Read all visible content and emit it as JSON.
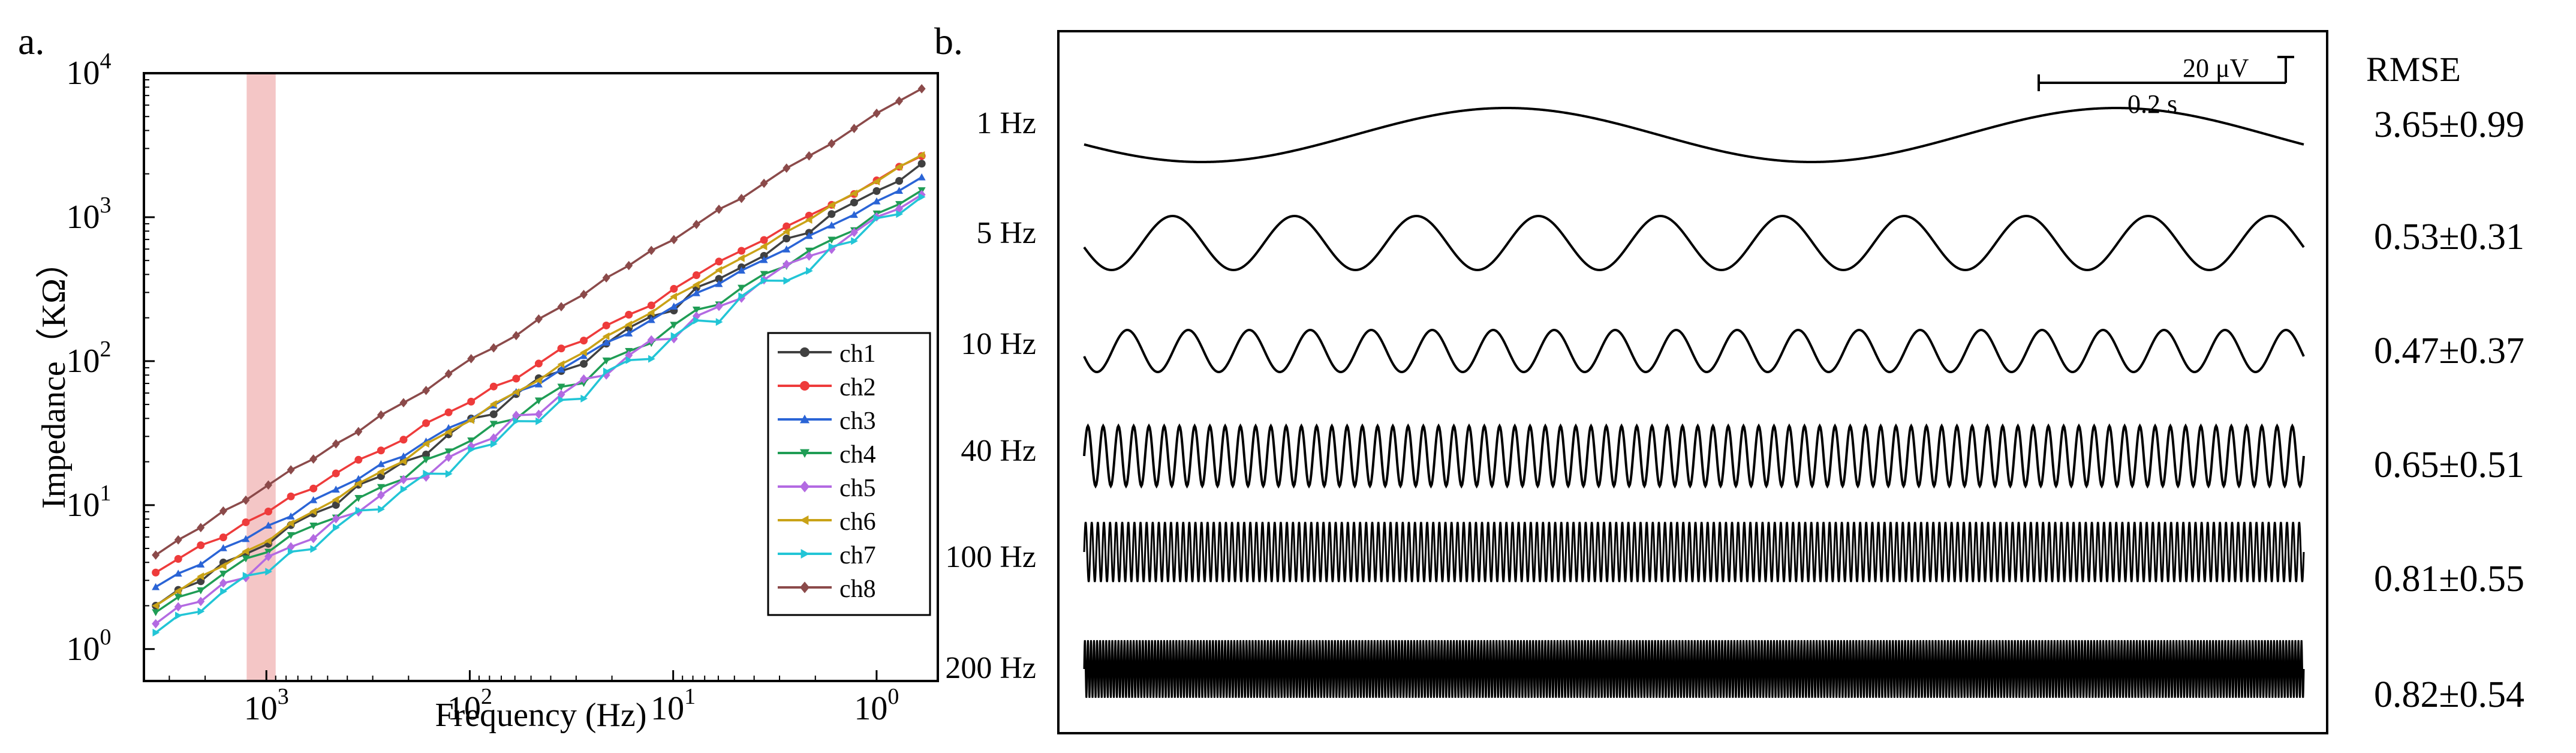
{
  "panel_a": {
    "label": "a.",
    "chart_data": {
      "type": "line",
      "xlabel": "Frequency  (Hz)",
      "ylabel": "Impedance（KΩ）",
      "x_scale": "log",
      "y_scale": "log",
      "x_direction": "descending",
      "xlim": [
        4000,
        0.5
      ],
      "ylim": [
        0.6,
        10000
      ],
      "x_ticks": [
        {
          "value": 1000,
          "base": "10",
          "exp": "3"
        },
        {
          "value": 100,
          "base": "10",
          "exp": "2"
        },
        {
          "value": 10,
          "base": "10",
          "exp": "1"
        },
        {
          "value": 1,
          "base": "10",
          "exp": "0"
        }
      ],
      "y_ticks": [
        {
          "value": 1,
          "base": "10",
          "exp": "0"
        },
        {
          "value": 10,
          "base": "10",
          "exp": "1"
        },
        {
          "value": 100,
          "base": "10",
          "exp": "2"
        },
        {
          "value": 1000,
          "base": "10",
          "exp": "3"
        },
        {
          "value": 10000,
          "base": "10",
          "exp": "4"
        }
      ],
      "highlight_band": {
        "x_from": 1250,
        "x_to": 900,
        "color": "#f4c6c6"
      },
      "legend_position": "bottom-right",
      "series": [
        {
          "name": "ch1",
          "color": "#404040",
          "marker": "circle",
          "y_at_lo": 2.0,
          "y_at_hi": 2300,
          "noise": [
            0,
            0.02,
            -0.01,
            0.03,
            0,
            -0.02,
            0.02,
            0.01,
            -0.02,
            0.03,
            0,
            0.01,
            -0.03,
            0.02,
            0.04,
            -0.02,
            0.03,
            0.05,
            0.01,
            -0.03,
            0.02,
            0.04,
            0.03,
            -0.02,
            0.05,
            0.02,
            0.01,
            0,
            0.03,
            -0.02,
            0.02,
            0.01,
            0,
            -0.02,
            0.01
          ]
        },
        {
          "name": "ch2",
          "color": "#ee3b3b",
          "marker": "circle",
          "y_at_lo": 3.4,
          "y_at_hi": 2600,
          "noise": [
            0,
            0.01,
            0.02,
            -0.01,
            0.01,
            0,
            0.02,
            -0.01,
            0.01,
            0.02,
            0,
            -0.01,
            0.02,
            0.01,
            0,
            0.02,
            -0.01,
            0.01,
            0.03,
            0,
            0.02,
            0.01,
            -0.01,
            0.02,
            0.03,
            0.04,
            0.03,
            0.02,
            0.03,
            0.02,
            0.01,
            0,
            0.01,
            0.02,
            0.01
          ]
        },
        {
          "name": "ch3",
          "color": "#2a64d6",
          "marker": "triangle-up",
          "y_at_lo": 2.7,
          "y_at_hi": 1850,
          "noise": [
            0,
            0.01,
            -0.01,
            0.02,
            0,
            0.01,
            -0.01,
            0.02,
            0.01,
            0,
            0.02,
            -0.01,
            0.01,
            0.02,
            0,
            0.01,
            0.02,
            -0.01,
            0.01,
            0.02,
            0.03,
            0.01,
            0.02,
            0.03,
            0.04,
            0.02,
            0.03,
            0.02,
            0.01,
            0.02,
            0.01,
            0,
            0.01,
            0,
            0.01
          ]
        },
        {
          "name": "ch4",
          "color": "#1f9d55",
          "marker": "triangle-down",
          "y_at_lo": 1.8,
          "y_at_hi": 1500,
          "noise": [
            0,
            0.02,
            -0.02,
            0.01,
            0.03,
            -0.01,
            0.02,
            0,
            -0.03,
            0.02,
            0.01,
            -0.02,
            0.03,
            0,
            -0.01,
            0.02,
            -0.03,
            0.01,
            0.02,
            -0.04,
            0.03,
            0.01,
            -0.02,
            0.02,
            0.04,
            -0.01,
            0.02,
            0.03,
            0,
            0.02,
            0.01,
            -0.01,
            0.02,
            0,
            0.01
          ]
        },
        {
          "name": "ch5",
          "color": "#b36ae2",
          "marker": "diamond",
          "y_at_lo": 1.5,
          "y_at_hi": 1400,
          "noise": [
            0,
            0.03,
            -0.02,
            0.02,
            -0.03,
            0.03,
            0.01,
            -0.02,
            0.03,
            -0.01,
            0.02,
            0.04,
            -0.03,
            0.02,
            0.01,
            -0.02,
            0.05,
            -0.03,
            0.02,
            0.04,
            -0.02,
            0.03,
            0.05,
            -0.03,
            0.04,
            0.02,
            -0.01,
            0.03,
            0.05,
            0.02,
            -0.02,
            0.01,
            0.03,
            0,
            0.01
          ]
        },
        {
          "name": "ch6",
          "color": "#c9a216",
          "marker": "triangle-left",
          "y_at_lo": 2.0,
          "y_at_hi": 2700,
          "noise": [
            0,
            0.01,
            0.02,
            0,
            0.01,
            -0.01,
            0.02,
            0.01,
            0,
            0.02,
            0.01,
            -0.01,
            0.02,
            0.01,
            0,
            0.02,
            0.01,
            0,
            0.02,
            0.01,
            0.03,
            0.02,
            0.01,
            0.03,
            0.02,
            0.03,
            0.02,
            0.01,
            0.02,
            0.01,
            0.02,
            0.01,
            0,
            0.01,
            0
          ]
        },
        {
          "name": "ch7",
          "color": "#22c5d6",
          "marker": "triangle-right",
          "y_at_lo": 1.3,
          "y_at_hi": 1350,
          "noise": [
            0,
            0.03,
            -0.03,
            0.02,
            0.04,
            -0.02,
            0.03,
            -0.04,
            0.02,
            0.05,
            -0.03,
            0.02,
            0.04,
            -0.05,
            0.03,
            -0.02,
            0.05,
            -0.04,
            0.02,
            -0.06,
            0.04,
            0.03,
            -0.05,
            0.02,
            0.04,
            -0.06,
            0.03,
            0.05,
            -0.04,
            -0.06,
            0.02,
            -0.03,
            0.04,
            -0.02,
            0.01
          ]
        },
        {
          "name": "ch8",
          "color": "#8b4a4a",
          "marker": "diamond",
          "y_at_lo": 4.5,
          "y_at_hi": 7800,
          "noise": [
            0,
            0.01,
            0,
            0.02,
            0,
            0.01,
            0.02,
            0,
            0.01,
            0,
            0.02,
            0.01,
            0,
            0.02,
            0.03,
            0.01,
            0,
            0.02,
            0.01,
            0,
            0.02,
            0.01,
            0.02,
            0,
            0.01,
            0.02,
            0,
            0.01,
            0.02,
            0.01,
            0,
            0.01,
            0.02,
            0.01,
            0
          ]
        }
      ]
    }
  },
  "panel_b": {
    "label": "b.",
    "chart_data": {
      "type": "line",
      "description_header": "RMSE",
      "scale_bar": {
        "amplitude_label": "20 μV",
        "time_label": "0.2 s"
      },
      "rows": [
        {
          "label": "1 Hz",
          "rmse": "3.65±0.99",
          "freq": 1,
          "phase": 3.5
        },
        {
          "label": "5 Hz",
          "rmse": "0.53±0.31",
          "freq": 5,
          "phase": 3.3
        },
        {
          "label": "10 Hz",
          "rmse": "0.47±0.37",
          "freq": 10,
          "phase": 3.4
        },
        {
          "label": "40 Hz",
          "rmse": "0.65±0.51",
          "freq": 40,
          "phase": 0
        },
        {
          "label": "100 Hz",
          "rmse": "0.81±0.55",
          "freq": 100,
          "phase": 0
        },
        {
          "label": "200 Hz",
          "rmse": "0.82±0.54",
          "freq": 200,
          "phase": 0
        }
      ]
    }
  }
}
